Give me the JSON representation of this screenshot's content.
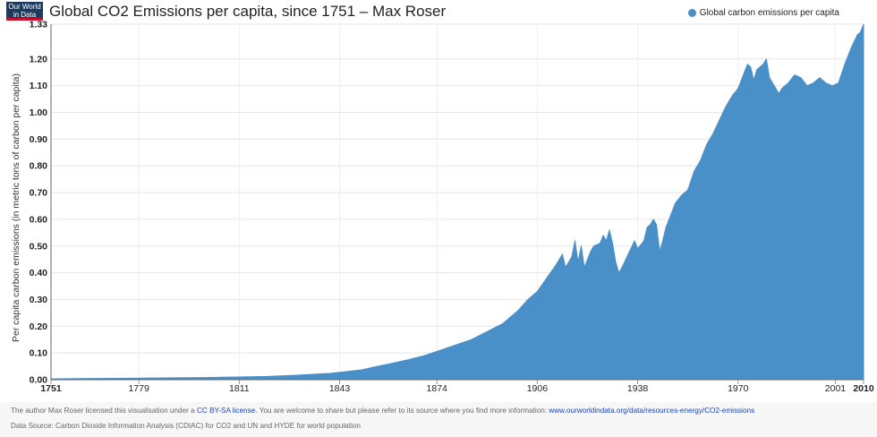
{
  "logo": {
    "line1": "Our World",
    "line2": "in Data"
  },
  "title": "Global CO2 Emissions per capita, since 1751 – Max Roser",
  "legend": {
    "label": "Global carbon emissions per capita",
    "color": "#4a90c8"
  },
  "footer": {
    "license_prefix": "The author Max Roser licensed this visualisation under a ",
    "license_link": "CC BY-SA license",
    "license_middle": ". You are welcome to share but please refer to its source where you find more information: ",
    "source_url": "www.ourworldindata.org/data/resources-energy/CO2-emissions",
    "data_source": "Data Source: Carbon Dioxide Information Analysis (CDIAC) for CO2 and UN and HYDE for world population"
  },
  "chart_data": {
    "type": "area",
    "title": "Global CO2 Emissions per capita, since 1751 – Max Roser",
    "xlabel": "",
    "ylabel": "Per capita carbon emissions (in metric tons of carbon per capita)",
    "xlim": [
      1751,
      2010
    ],
    "ylim": [
      0,
      1.33
    ],
    "xticks": [
      "1751",
      "1779",
      "1811",
      "1843",
      "1874",
      "1906",
      "1938",
      "1970",
      "2001",
      "2010"
    ],
    "yticks": [
      "0.00",
      "0.10",
      "0.20",
      "0.30",
      "0.40",
      "0.50",
      "0.60",
      "0.70",
      "0.80",
      "0.90",
      "1.00",
      "1.10",
      "1.20",
      "1.33"
    ],
    "grid": true,
    "legend": "top-right",
    "series": [
      {
        "name": "Global carbon emissions per capita",
        "color": "#4a90c8",
        "x": [
          1751,
          1760,
          1770,
          1780,
          1790,
          1800,
          1810,
          1820,
          1830,
          1840,
          1845,
          1850,
          1855,
          1860,
          1865,
          1870,
          1875,
          1880,
          1885,
          1890,
          1895,
          1900,
          1903,
          1906,
          1909,
          1912,
          1914,
          1915,
          1917,
          1918,
          1919,
          1920,
          1921,
          1923,
          1924,
          1926,
          1927,
          1928,
          1929,
          1930,
          1931,
          1932,
          1933,
          1935,
          1937,
          1938,
          1940,
          1941,
          1942,
          1943,
          1944,
          1945,
          1946,
          1947,
          1948,
          1950,
          1952,
          1954,
          1956,
          1958,
          1960,
          1962,
          1964,
          1966,
          1968,
          1970,
          1972,
          1973,
          1974,
          1975,
          1976,
          1978,
          1979,
          1980,
          1981,
          1983,
          1984,
          1986,
          1988,
          1990,
          1992,
          1994,
          1995,
          1996,
          1998,
          2000,
          2002,
          2004,
          2006,
          2008,
          2009,
          2010
        ],
        "y": [
          0.003,
          0.004,
          0.005,
          0.006,
          0.007,
          0.008,
          0.01,
          0.012,
          0.017,
          0.024,
          0.03,
          0.037,
          0.05,
          0.062,
          0.075,
          0.09,
          0.11,
          0.13,
          0.15,
          0.18,
          0.21,
          0.26,
          0.3,
          0.33,
          0.38,
          0.43,
          0.47,
          0.42,
          0.46,
          0.52,
          0.44,
          0.5,
          0.42,
          0.48,
          0.5,
          0.51,
          0.54,
          0.52,
          0.56,
          0.51,
          0.44,
          0.4,
          0.42,
          0.47,
          0.52,
          0.49,
          0.52,
          0.57,
          0.58,
          0.6,
          0.58,
          0.48,
          0.52,
          0.57,
          0.6,
          0.66,
          0.69,
          0.71,
          0.78,
          0.82,
          0.88,
          0.92,
          0.97,
          1.02,
          1.06,
          1.09,
          1.15,
          1.18,
          1.17,
          1.12,
          1.16,
          1.18,
          1.2,
          1.13,
          1.11,
          1.07,
          1.09,
          1.11,
          1.14,
          1.13,
          1.1,
          1.11,
          1.12,
          1.13,
          1.11,
          1.1,
          1.11,
          1.18,
          1.24,
          1.29,
          1.3,
          1.33
        ]
      }
    ]
  }
}
